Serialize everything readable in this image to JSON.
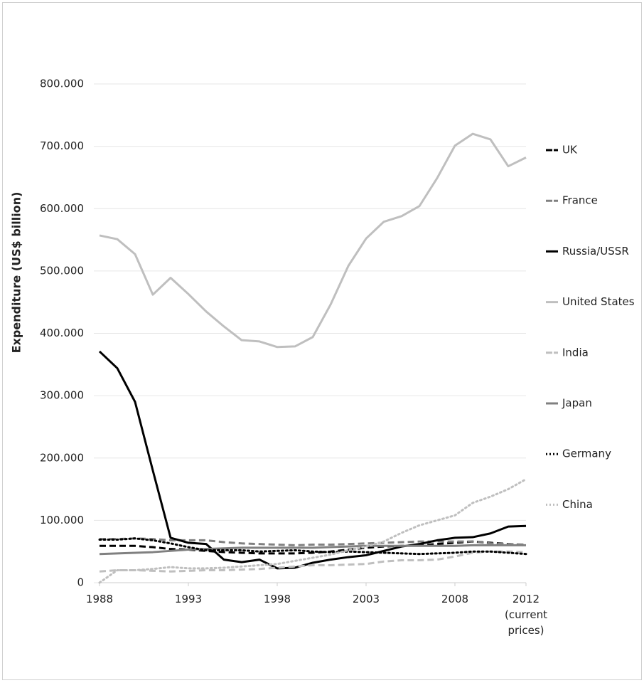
{
  "chart_data": {
    "type": "line",
    "y_label": "Expenditure (US$ billion)",
    "x": [
      1988,
      1989,
      1990,
      1991,
      1992,
      1993,
      1994,
      1995,
      1996,
      1997,
      1998,
      1999,
      2000,
      2001,
      2002,
      2003,
      2004,
      2005,
      2006,
      2007,
      2008,
      2009,
      2010,
      2011,
      2012
    ],
    "xlim": [
      1988,
      2012
    ],
    "xticks": [
      1988,
      1993,
      1998,
      2003,
      2008,
      {
        "value": 2012,
        "label": "2012\n(current\nprices)"
      }
    ],
    "ylim": [
      0,
      800
    ],
    "yticks": [
      0,
      {
        "value": 100,
        "label": "100.000"
      },
      {
        "value": 200,
        "label": "200.000"
      },
      {
        "value": 300,
        "label": "300.000"
      },
      {
        "value": 400,
        "label": "400.000"
      },
      {
        "value": 500,
        "label": "500.000"
      },
      {
        "value": 600,
        "label": "600.000"
      },
      {
        "value": 700,
        "label": "700.000"
      },
      {
        "value": 800,
        "label": "800.000"
      }
    ],
    "grid": true,
    "legend": "right",
    "series": [
      {
        "name": "UK",
        "color": "#000000",
        "dash": "dashed",
        "values": [
          59,
          59,
          59,
          57,
          54,
          53,
          51,
          49,
          48,
          47,
          47,
          47,
          48,
          50,
          53,
          56,
          58,
          59,
          60,
          62,
          64,
          66,
          64,
          62,
          60
        ]
      },
      {
        "name": "France",
        "color": "#808080",
        "dash": "dashed",
        "values": [
          70,
          70,
          71,
          70,
          68,
          68,
          68,
          65,
          63,
          62,
          61,
          60,
          61,
          61,
          62,
          63,
          64,
          65,
          66,
          66,
          66,
          66,
          63,
          62,
          61
        ]
      },
      {
        "name": "Russia/USSR",
        "color": "#000000",
        "dash": "solid",
        "values": [
          371,
          344,
          290,
          180,
          72,
          64,
          62,
          37,
          33,
          37,
          23,
          24,
          32,
          37,
          41,
          44,
          51,
          58,
          62,
          68,
          72,
          73,
          79,
          90,
          91
        ]
      },
      {
        "name": "United States",
        "color": "#bfbfbf",
        "dash": "solid",
        "values": [
          557,
          551,
          527,
          462,
          489,
          463,
          435,
          411,
          389,
          387,
          378,
          379,
          394,
          446,
          508,
          552,
          579,
          588,
          604,
          649,
          701,
          720,
          711,
          668,
          682
        ]
      },
      {
        "name": "India",
        "color": "#bfbfbf",
        "dash": "dashed",
        "values": [
          18,
          20,
          20,
          19,
          18,
          19,
          20,
          20,
          21,
          22,
          24,
          26,
          28,
          28,
          29,
          30,
          34,
          36,
          36,
          37,
          42,
          48,
          50,
          50,
          49
        ]
      },
      {
        "name": "Japan",
        "color": "#808080",
        "dash": "solid",
        "values": [
          46,
          47,
          48,
          49,
          51,
          53,
          54,
          55,
          56,
          56,
          56,
          56,
          56,
          57,
          58,
          59,
          59,
          59,
          59,
          59,
          59,
          60,
          60,
          60,
          60
        ]
      },
      {
        "name": "Germany",
        "color": "#000000",
        "dash": "dotted",
        "values": [
          69,
          69,
          71,
          68,
          63,
          57,
          52,
          52,
          52,
          50,
          51,
          52,
          50,
          49,
          50,
          49,
          48,
          47,
          46,
          47,
          48,
          50,
          50,
          48,
          46
        ]
      },
      {
        "name": "China",
        "color": "#bfbfbf",
        "dash": "dotted",
        "values": [
          0,
          20,
          20,
          22,
          25,
          23,
          23,
          24,
          26,
          28,
          30,
          35,
          40,
          45,
          52,
          58,
          66,
          80,
          92,
          100,
          108,
          128,
          138,
          150,
          166
        ]
      }
    ]
  }
}
